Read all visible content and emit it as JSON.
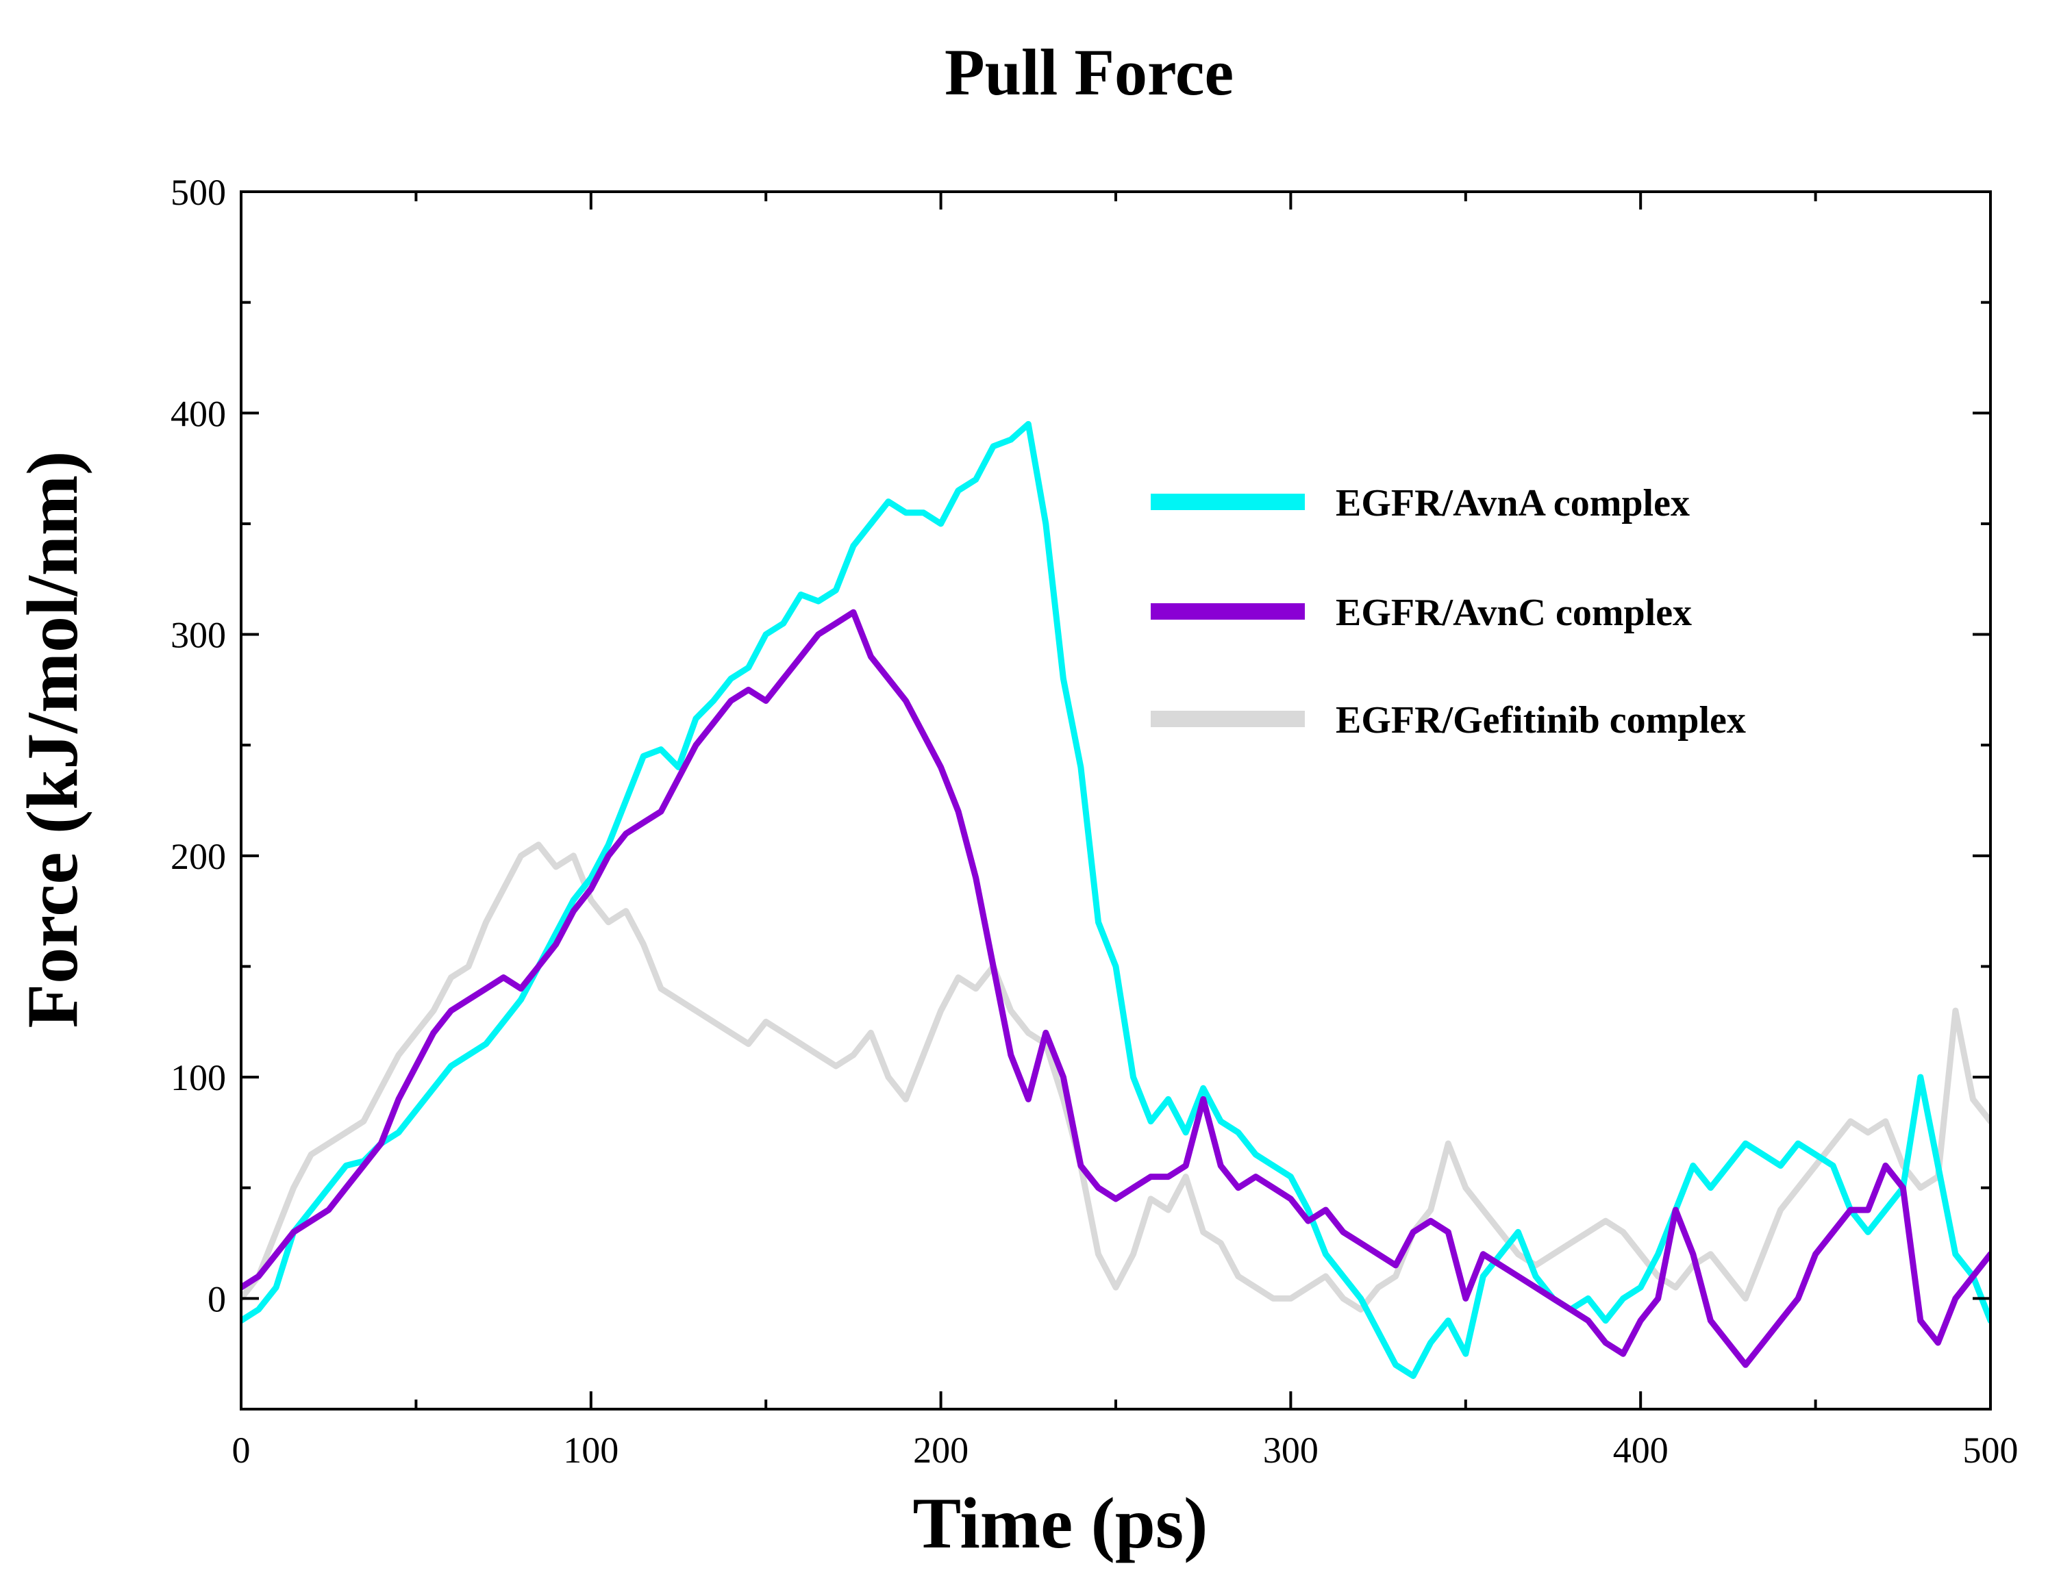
{
  "chart_data": {
    "type": "line",
    "title": "Pull Force",
    "xlabel": "Time (ps)",
    "ylabel": "Force (kJ/mol/nm)",
    "xlim": [
      0,
      500
    ],
    "ylim": [
      -50,
      500
    ],
    "xticks": [
      0,
      100,
      200,
      300,
      400,
      500
    ],
    "xtick_labels": [
      "0",
      "100",
      "200",
      "300",
      "400",
      "500"
    ],
    "yticks": [
      0,
      100,
      200,
      300,
      400,
      500
    ],
    "ytick_labels": [
      "0",
      "100",
      "200",
      "300",
      "400",
      "500"
    ],
    "grid": false,
    "legend_position": "upper-right",
    "series": [
      {
        "name": "EGFR/AvnA complex",
        "color": "#00f5f5",
        "x": [
          0,
          5,
          10,
          15,
          20,
          25,
          30,
          35,
          40,
          45,
          50,
          55,
          60,
          65,
          70,
          75,
          80,
          85,
          90,
          95,
          100,
          105,
          110,
          115,
          120,
          125,
          130,
          135,
          140,
          145,
          150,
          155,
          160,
          165,
          170,
          175,
          180,
          185,
          190,
          195,
          200,
          205,
          210,
          215,
          220,
          225,
          230,
          235,
          240,
          245,
          250,
          255,
          260,
          265,
          270,
          275,
          280,
          285,
          290,
          295,
          300,
          305,
          310,
          315,
          320,
          325,
          330,
          335,
          340,
          345,
          350,
          355,
          360,
          365,
          370,
          375,
          380,
          385,
          390,
          395,
          400,
          405,
          410,
          415,
          420,
          425,
          430,
          435,
          440,
          445,
          450,
          455,
          460,
          465,
          470,
          475,
          480,
          485,
          490,
          495,
          500
        ],
        "y": [
          -10,
          -5,
          5,
          30,
          40,
          50,
          60,
          62,
          70,
          75,
          85,
          95,
          105,
          110,
          115,
          125,
          135,
          150,
          165,
          180,
          190,
          205,
          225,
          245,
          248,
          240,
          262,
          270,
          280,
          285,
          300,
          305,
          318,
          315,
          320,
          340,
          350,
          360,
          355,
          355,
          350,
          365,
          370,
          385,
          388,
          395,
          350,
          280,
          240,
          170,
          150,
          100,
          80,
          90,
          75,
          95,
          80,
          75,
          65,
          60,
          55,
          40,
          20,
          10,
          0,
          -15,
          -30,
          -35,
          -20,
          -10,
          -25,
          10,
          20,
          30,
          10,
          0,
          -5,
          0,
          -10,
          0,
          5,
          20,
          40,
          60,
          50,
          60,
          70,
          65,
          60,
          70,
          65,
          60,
          40,
          30,
          40,
          50,
          100,
          60,
          20,
          10,
          -10
        ]
      },
      {
        "name": "EGFR/AvnC complex",
        "color": "#8a00d4",
        "x": [
          0,
          5,
          10,
          15,
          20,
          25,
          30,
          35,
          40,
          45,
          50,
          55,
          60,
          65,
          70,
          75,
          80,
          85,
          90,
          95,
          100,
          105,
          110,
          115,
          120,
          125,
          130,
          135,
          140,
          145,
          150,
          155,
          160,
          165,
          170,
          175,
          180,
          185,
          190,
          195,
          200,
          205,
          210,
          215,
          220,
          225,
          230,
          235,
          240,
          245,
          250,
          255,
          260,
          265,
          270,
          275,
          280,
          285,
          290,
          295,
          300,
          305,
          310,
          315,
          320,
          325,
          330,
          335,
          340,
          345,
          350,
          355,
          360,
          365,
          370,
          375,
          380,
          385,
          390,
          395,
          400,
          405,
          410,
          415,
          420,
          425,
          430,
          435,
          440,
          445,
          450,
          455,
          460,
          465,
          470,
          475,
          480,
          485,
          490,
          495,
          500
        ],
        "y": [
          5,
          10,
          20,
          30,
          35,
          40,
          50,
          60,
          70,
          90,
          105,
          120,
          130,
          135,
          140,
          145,
          140,
          150,
          160,
          175,
          185,
          200,
          210,
          215,
          220,
          235,
          250,
          260,
          270,
          275,
          270,
          280,
          290,
          300,
          305,
          310,
          290,
          280,
          270,
          255,
          240,
          220,
          190,
          150,
          110,
          90,
          120,
          100,
          60,
          50,
          45,
          50,
          55,
          55,
          60,
          90,
          60,
          50,
          55,
          50,
          45,
          35,
          40,
          30,
          25,
          20,
          15,
          30,
          35,
          30,
          0,
          20,
          15,
          10,
          5,
          0,
          -5,
          -10,
          -20,
          -25,
          -10,
          0,
          40,
          20,
          -10,
          -20,
          -30,
          -20,
          -10,
          0,
          20,
          30,
          40,
          40,
          60,
          50,
          -10,
          -20,
          0,
          10,
          20
        ]
      },
      {
        "name": "EGFR/Gefitinib complex",
        "color": "#d9d9d9",
        "x": [
          0,
          5,
          10,
          15,
          20,
          25,
          30,
          35,
          40,
          45,
          50,
          55,
          60,
          65,
          70,
          75,
          80,
          85,
          90,
          95,
          100,
          105,
          110,
          115,
          120,
          125,
          130,
          135,
          140,
          145,
          150,
          155,
          160,
          165,
          170,
          175,
          180,
          185,
          190,
          195,
          200,
          205,
          210,
          215,
          220,
          225,
          230,
          235,
          240,
          245,
          250,
          255,
          260,
          265,
          270,
          275,
          280,
          285,
          290,
          295,
          300,
          305,
          310,
          315,
          320,
          325,
          330,
          335,
          340,
          345,
          350,
          355,
          360,
          365,
          370,
          375,
          380,
          385,
          390,
          395,
          400,
          405,
          410,
          415,
          420,
          425,
          430,
          435,
          440,
          445,
          450,
          455,
          460,
          465,
          470,
          475,
          480,
          485,
          490,
          495,
          500
        ],
        "y": [
          0,
          10,
          30,
          50,
          65,
          70,
          75,
          80,
          95,
          110,
          120,
          130,
          145,
          150,
          170,
          185,
          200,
          205,
          195,
          200,
          180,
          170,
          175,
          160,
          140,
          135,
          130,
          125,
          120,
          115,
          125,
          120,
          115,
          110,
          105,
          110,
          120,
          100,
          90,
          110,
          130,
          145,
          140,
          150,
          130,
          120,
          115,
          90,
          60,
          20,
          5,
          20,
          45,
          40,
          55,
          30,
          25,
          10,
          5,
          0,
          0,
          5,
          10,
          0,
          -5,
          5,
          10,
          30,
          40,
          70,
          50,
          40,
          30,
          20,
          15,
          20,
          25,
          30,
          35,
          30,
          20,
          10,
          5,
          15,
          20,
          10,
          0,
          20,
          40,
          50,
          60,
          70,
          80,
          75,
          80,
          60,
          50,
          55,
          130,
          90,
          80
        ]
      }
    ]
  }
}
